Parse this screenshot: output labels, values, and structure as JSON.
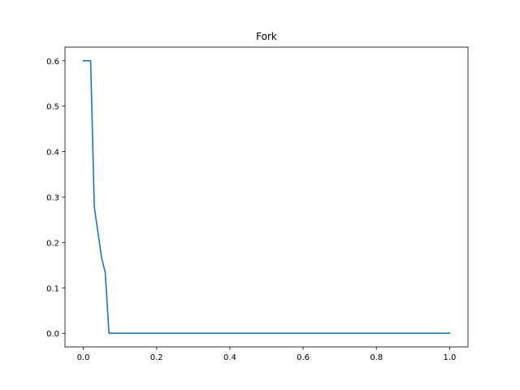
{
  "chart_data": {
    "type": "line",
    "title": "Fork",
    "xlabel": "",
    "ylabel": "",
    "xlim": [
      -0.05,
      1.05
    ],
    "ylim": [
      -0.03,
      0.63
    ],
    "grid": false,
    "x_ticks": [
      0.0,
      0.2,
      0.4,
      0.6,
      0.8,
      1.0
    ],
    "x_tick_labels": [
      "0.0",
      "0.2",
      "0.4",
      "0.6",
      "0.8",
      "1.0"
    ],
    "y_ticks": [
      0.0,
      0.1,
      0.2,
      0.3,
      0.4,
      0.5,
      0.6
    ],
    "y_tick_labels": [
      "0.0",
      "0.1",
      "0.2",
      "0.3",
      "0.4",
      "0.5",
      "0.6"
    ],
    "series": [
      {
        "color": "#1f77b4",
        "x": [
          0.0,
          0.02,
          0.03,
          0.05,
          0.06,
          0.07,
          1.0
        ],
        "y": [
          0.6,
          0.6,
          0.278,
          0.166,
          0.133,
          0.0,
          0.0
        ]
      }
    ]
  }
}
